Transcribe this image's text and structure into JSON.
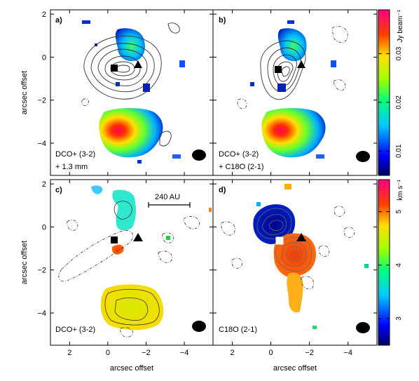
{
  "panels": [
    {
      "id": "a",
      "label": "a)",
      "annotation": [
        "DCO+ (3-2)",
        "+ 1.3 mm"
      ],
      "contours": "continuum",
      "contour_style": "solid"
    },
    {
      "id": "b",
      "label": "b)",
      "annotation": [
        "DCO+ (3-2)",
        "+ C18O (2-1)"
      ],
      "contours": "C18O",
      "contour_style": "solid-and-dashed"
    },
    {
      "id": "c",
      "label": "c)",
      "annotation": [
        "DCO+ (3-2)"
      ],
      "scale_bar_label": "240 AU",
      "contour_style": "solid-and-dashed"
    },
    {
      "id": "d",
      "label": "d)",
      "annotation": [
        "C18O (2-1)"
      ],
      "contour_style": "solid-and-dashed"
    }
  ],
  "ylabel": "arcsec offset",
  "xlabel": "arcsec offset",
  "colorbar_top": {
    "unit": "Jy beam⁻¹",
    "ticks": [
      "0.01",
      "0.02",
      "0.03"
    ],
    "range": [
      0.005,
      0.039
    ]
  },
  "colorbar_bottom": {
    "unit": "km s⁻¹",
    "ticks": [
      "3",
      "4",
      "5"
    ],
    "range": [
      2.5,
      5.6
    ]
  },
  "markers": [
    {
      "name": "square",
      "x": -0.2,
      "y": -0.7
    },
    {
      "name": "triangle",
      "x": -1.5,
      "y": -0.5
    }
  ],
  "chart_data": {
    "type": "heatmap",
    "description_units": "arcsec",
    "xlim": [
      3,
      -5.5
    ],
    "ylim": [
      -5.5,
      2.2
    ],
    "xticks": [
      2,
      0,
      -2,
      -4
    ],
    "yticks": [
      2,
      0,
      -2,
      -4
    ],
    "beam": {
      "x": -4.6,
      "y": -4.7
    },
    "series": [
      {
        "panel": "a",
        "clumps": [
          {
            "x": -0.6,
            "y": 0.2,
            "level": "0.02-0.03"
          },
          {
            "x": -0.8,
            "y": -4.0,
            "level": "0.03-0.039"
          }
        ]
      },
      {
        "panel": "b",
        "clumps": [
          {
            "x": -0.6,
            "y": 0.2,
            "level": "0.02-0.03"
          },
          {
            "x": -0.8,
            "y": -4.0,
            "level": "0.03-0.039"
          }
        ]
      },
      {
        "panel": "c",
        "clumps": [
          {
            "x": -0.6,
            "y": 0.1,
            "vlsr": 3.7
          },
          {
            "x": -0.9,
            "y": -4.1,
            "vlsr": 4.4
          }
        ]
      },
      {
        "panel": "d",
        "clumps": [
          {
            "x": 0.1,
            "y": -0.2,
            "vlsr": 2.7
          },
          {
            "x": -0.4,
            "y": -1.3,
            "vlsr": 5.3
          }
        ]
      }
    ]
  }
}
